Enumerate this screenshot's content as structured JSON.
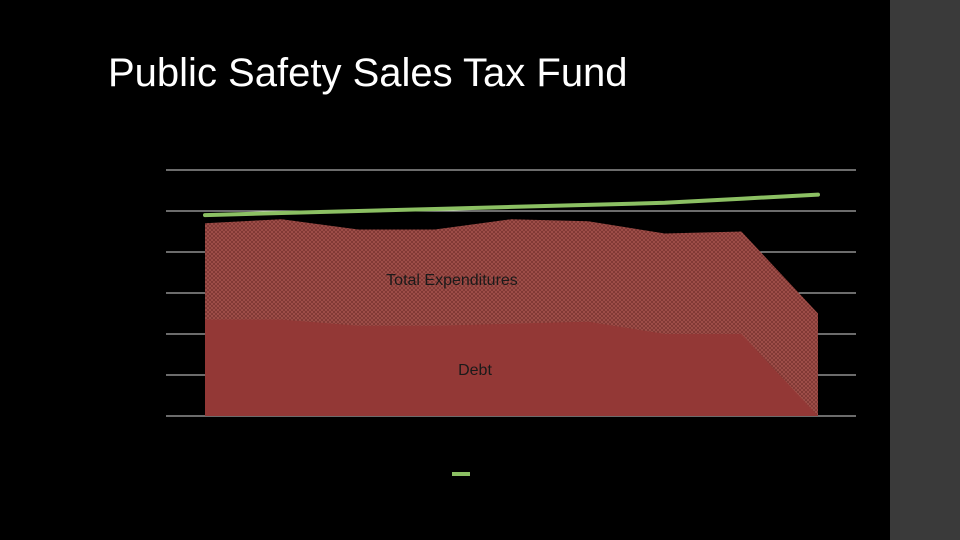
{
  "slide": {
    "title": "Public Safety Sales Tax Fund"
  },
  "colors": {
    "background": "#000000",
    "side_bar": "#3a3a3a",
    "total_expenditures_fill": "#7a3430",
    "total_expenditures_pattern": "#a4524c",
    "debt_fill": "#933836",
    "revenue_line": "#8cc063",
    "gridline": "#d9d9d9"
  },
  "chart_data": {
    "type": "area",
    "title": "",
    "xlabel": "",
    "ylabel": "",
    "x": [
      1,
      2,
      3,
      4,
      5,
      6,
      7,
      8,
      9
    ],
    "ylim": [
      0,
      6
    ],
    "grid": true,
    "series": [
      {
        "name": "Total Expenditures",
        "kind": "area",
        "pattern": "crosshatch",
        "values": [
          4.7,
          4.8,
          4.55,
          4.55,
          4.8,
          4.75,
          4.45,
          4.5,
          2.5
        ]
      },
      {
        "name": "Debt",
        "kind": "area",
        "values": [
          2.35,
          2.35,
          2.2,
          2.2,
          2.25,
          2.3,
          2.0,
          2.0,
          0.0
        ]
      },
      {
        "name": "",
        "kind": "line",
        "values": [
          4.9,
          4.95,
          5.0,
          5.05,
          5.1,
          5.15,
          5.2,
          5.3,
          5.4
        ]
      }
    ]
  }
}
